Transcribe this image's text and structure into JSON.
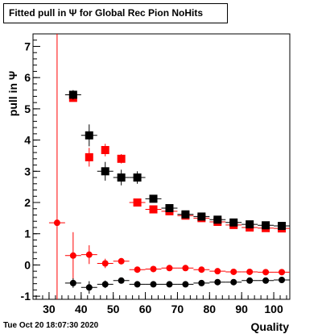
{
  "title": "Fitted pull in  Ψ  for Global Rec Pion NoHits",
  "timestamp": "Tue Oct 20 18:07:30 2020",
  "chart_data": {
    "type": "scatter",
    "title": "Fitted pull in  Ψ  for Global Rec Pion NoHits",
    "xlabel": "Quality",
    "ylabel": "pull in  Ψ",
    "xlim": [
      25,
      105
    ],
    "ylim": [
      -1.1,
      7.4
    ],
    "x_ticks": [
      30,
      40,
      50,
      60,
      70,
      80,
      90,
      100
    ],
    "y_ticks": [
      -1,
      0,
      1,
      2,
      3,
      4,
      5,
      6,
      7
    ],
    "grid": false,
    "series": [
      {
        "color": "#ff0000",
        "marker": "square",
        "points": [
          {
            "x": 37.5,
            "y": 5.35,
            "xerr": 1.2,
            "yerr": 0.05
          },
          {
            "x": 42.5,
            "y": 3.45,
            "xerr": 1.2,
            "yerr": 0.3
          },
          {
            "x": 47.5,
            "y": 3.68,
            "xerr": 1.2,
            "yerr": 0.2
          },
          {
            "x": 52.5,
            "y": 3.4,
            "xerr": 1.2,
            "yerr": 0.15
          },
          {
            "x": 57.5,
            "y": 2.0,
            "xerr": 2.5,
            "yerr": 0.05
          },
          {
            "x": 62.5,
            "y": 1.78,
            "xerr": 2.5,
            "yerr": 0.05
          },
          {
            "x": 67.5,
            "y": 1.72,
            "xerr": 2.5,
            "yerr": 0.05
          },
          {
            "x": 72.5,
            "y": 1.58,
            "xerr": 2.5,
            "yerr": 0.05
          },
          {
            "x": 77.5,
            "y": 1.5,
            "xerr": 2.5,
            "yerr": 0.05
          },
          {
            "x": 82.5,
            "y": 1.38,
            "xerr": 2.5,
            "yerr": 0.05
          },
          {
            "x": 87.5,
            "y": 1.28,
            "xerr": 2.5,
            "yerr": 0.05
          },
          {
            "x": 92.5,
            "y": 1.2,
            "xerr": 2.5,
            "yerr": 0.05
          },
          {
            "x": 97.5,
            "y": 1.18,
            "xerr": 2.5,
            "yerr": 0.05
          },
          {
            "x": 102.5,
            "y": 1.17,
            "xerr": 2.5,
            "yerr": 0.05
          }
        ]
      },
      {
        "color": "#000000",
        "marker": "square",
        "points": [
          {
            "x": 37.5,
            "y": 5.45,
            "xerr": 2.5,
            "yerr": 0.15
          },
          {
            "x": 42.5,
            "y": 4.15,
            "xerr": 2.5,
            "yerr": 0.35
          },
          {
            "x": 47.5,
            "y": 3.0,
            "xerr": 2.5,
            "yerr": 0.3
          },
          {
            "x": 52.5,
            "y": 2.8,
            "xerr": 2.5,
            "yerr": 0.25
          },
          {
            "x": 57.5,
            "y": 2.8,
            "xerr": 2.5,
            "yerr": 0.2
          },
          {
            "x": 62.5,
            "y": 2.12,
            "xerr": 2.5,
            "yerr": 0.08
          },
          {
            "x": 67.5,
            "y": 1.82,
            "xerr": 2.5,
            "yerr": 0.05
          },
          {
            "x": 72.5,
            "y": 1.62,
            "xerr": 2.5,
            "yerr": 0.05
          },
          {
            "x": 77.5,
            "y": 1.55,
            "xerr": 2.5,
            "yerr": 0.05
          },
          {
            "x": 82.5,
            "y": 1.45,
            "xerr": 2.5,
            "yerr": 0.05
          },
          {
            "x": 87.5,
            "y": 1.36,
            "xerr": 2.5,
            "yerr": 0.05
          },
          {
            "x": 92.5,
            "y": 1.3,
            "xerr": 2.5,
            "yerr": 0.05
          },
          {
            "x": 97.5,
            "y": 1.27,
            "xerr": 2.5,
            "yerr": 0.05
          },
          {
            "x": 102.5,
            "y": 1.25,
            "xerr": 2.5,
            "yerr": 0.05
          }
        ]
      },
      {
        "color": "#ff0000",
        "marker": "circle",
        "points": [
          {
            "x": 32.5,
            "y": 1.35,
            "xerr": 2.5,
            "yerr": 7.0
          },
          {
            "x": 37.5,
            "y": 0.3,
            "xerr": 2.5,
            "yerr": 0.75
          },
          {
            "x": 42.5,
            "y": 0.33,
            "xerr": 2.5,
            "yerr": 0.3
          },
          {
            "x": 47.5,
            "y": 0.05,
            "xerr": 2.5,
            "yerr": 0.15
          },
          {
            "x": 52.5,
            "y": 0.12,
            "xerr": 2.5,
            "yerr": 0.1
          },
          {
            "x": 57.5,
            "y": -0.15,
            "xerr": 2.5,
            "yerr": 0.05
          },
          {
            "x": 62.5,
            "y": -0.13,
            "xerr": 2.5,
            "yerr": 0.05
          },
          {
            "x": 67.5,
            "y": -0.1,
            "xerr": 2.5,
            "yerr": 0.05
          },
          {
            "x": 72.5,
            "y": -0.1,
            "xerr": 2.5,
            "yerr": 0.05
          },
          {
            "x": 77.5,
            "y": -0.15,
            "xerr": 2.5,
            "yerr": 0.05
          },
          {
            "x": 82.5,
            "y": -0.2,
            "xerr": 2.5,
            "yerr": 0.05
          },
          {
            "x": 87.5,
            "y": -0.22,
            "xerr": 2.5,
            "yerr": 0.05
          },
          {
            "x": 92.5,
            "y": -0.22,
            "xerr": 2.5,
            "yerr": 0.05
          },
          {
            "x": 97.5,
            "y": -0.23,
            "xerr": 2.5,
            "yerr": 0.05
          },
          {
            "x": 102.5,
            "y": -0.23,
            "xerr": 2.5,
            "yerr": 0.05
          }
        ]
      },
      {
        "color": "#000000",
        "marker": "circle",
        "points": [
          {
            "x": 37.5,
            "y": -0.58,
            "xerr": 2.5,
            "yerr": 0.15
          },
          {
            "x": 42.5,
            "y": -0.72,
            "xerr": 2.5,
            "yerr": 0.2
          },
          {
            "x": 47.5,
            "y": -0.62,
            "xerr": 2.5,
            "yerr": 0.12
          },
          {
            "x": 52.5,
            "y": -0.5,
            "xerr": 2.5,
            "yerr": 0.08
          },
          {
            "x": 57.5,
            "y": -0.62,
            "xerr": 2.5,
            "yerr": 0.05
          },
          {
            "x": 62.5,
            "y": -0.62,
            "xerr": 2.5,
            "yerr": 0.05
          },
          {
            "x": 67.5,
            "y": -0.62,
            "xerr": 2.5,
            "yerr": 0.05
          },
          {
            "x": 72.5,
            "y": -0.62,
            "xerr": 2.5,
            "yerr": 0.05
          },
          {
            "x": 77.5,
            "y": -0.58,
            "xerr": 2.5,
            "yerr": 0.05
          },
          {
            "x": 82.5,
            "y": -0.55,
            "xerr": 2.5,
            "yerr": 0.05
          },
          {
            "x": 87.5,
            "y": -0.55,
            "xerr": 2.5,
            "yerr": 0.05
          },
          {
            "x": 92.5,
            "y": -0.5,
            "xerr": 2.5,
            "yerr": 0.05
          },
          {
            "x": 97.5,
            "y": -0.5,
            "xerr": 2.5,
            "yerr": 0.05
          },
          {
            "x": 102.5,
            "y": -0.48,
            "xerr": 2.5,
            "yerr": 0.05
          }
        ]
      }
    ]
  }
}
